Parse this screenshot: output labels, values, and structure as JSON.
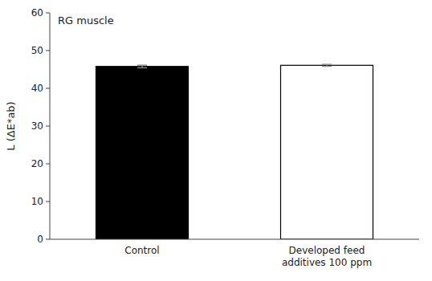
{
  "chart_data": {
    "type": "bar",
    "categories": [
      "Control",
      "Developed feed\nadditives 100 ppm"
    ],
    "values": [
      45.8,
      46.1
    ],
    "errors": [
      0.35,
      0.25
    ],
    "colors": [
      "#000000",
      "#ffffff"
    ],
    "ylabel": "L (ΔE*ab)",
    "ylim": [
      0,
      60
    ],
    "yticks": [
      0,
      10,
      20,
      30,
      40,
      50,
      60
    ],
    "annotation": "RG muscle",
    "grid": false
  }
}
